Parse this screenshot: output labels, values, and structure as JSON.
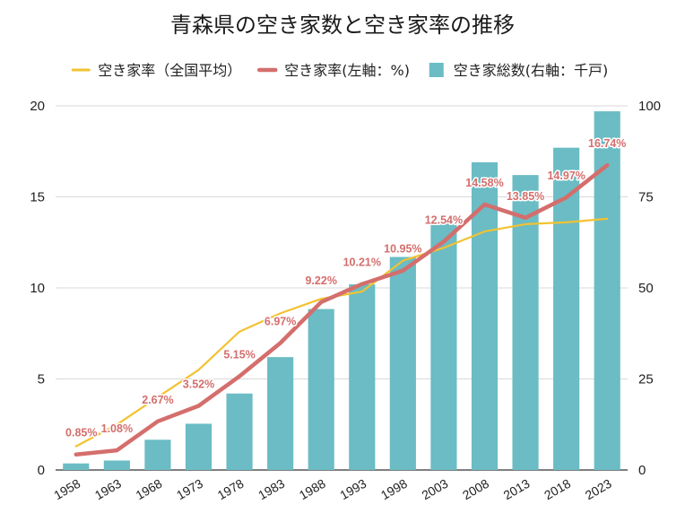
{
  "chart_data": {
    "type": "bar",
    "title": "青森県の空き家数と空き家率の推移",
    "categories": [
      "1958",
      "1963",
      "1968",
      "1973",
      "1978",
      "1983",
      "1988",
      "1993",
      "1998",
      "2003",
      "2008",
      "2013",
      "2018",
      "2023"
    ],
    "series": [
      {
        "name": "空き家率（全国平均）",
        "type": "line",
        "axis": "left",
        "color": "#f2c232",
        "values": [
          1.3,
          2.5,
          4.0,
          5.5,
          7.6,
          8.6,
          9.4,
          9.8,
          11.5,
          12.2,
          13.1,
          13.5,
          13.6,
          13.8
        ]
      },
      {
        "name": "空き家率(左軸：%)",
        "type": "line",
        "axis": "left",
        "color": "#d46e6c",
        "values": [
          0.85,
          1.08,
          2.67,
          3.52,
          5.15,
          6.97,
          9.22,
          10.21,
          10.95,
          12.54,
          14.58,
          13.85,
          14.97,
          16.74
        ],
        "labels": [
          "0.85%",
          "1.08%",
          "2.67%",
          "3.52%",
          "5.15%",
          "6.97%",
          "9.22%",
          "10.21%",
          "10.95%",
          "12.54%",
          "14.58%",
          "13.85%",
          "14.97%",
          "16.74%"
        ]
      },
      {
        "name": "空き家総数(右軸：千戸)",
        "type": "bar",
        "axis": "right",
        "color": "#6bbcc4",
        "values": [
          1.8,
          2.6,
          8.3,
          12.7,
          21.0,
          31.0,
          44.2,
          51.0,
          58.5,
          68.0,
          84.5,
          81.0,
          88.5,
          98.5
        ]
      }
    ],
    "y_left": {
      "min": 0,
      "max": 20,
      "ticks": [
        0,
        5,
        10,
        15,
        20
      ]
    },
    "y_right": {
      "min": 0,
      "max": 100,
      "ticks": [
        0,
        25,
        50,
        75,
        100
      ]
    },
    "xlabel": "",
    "ylabel": "",
    "legend_position": "top",
    "grid": true
  }
}
